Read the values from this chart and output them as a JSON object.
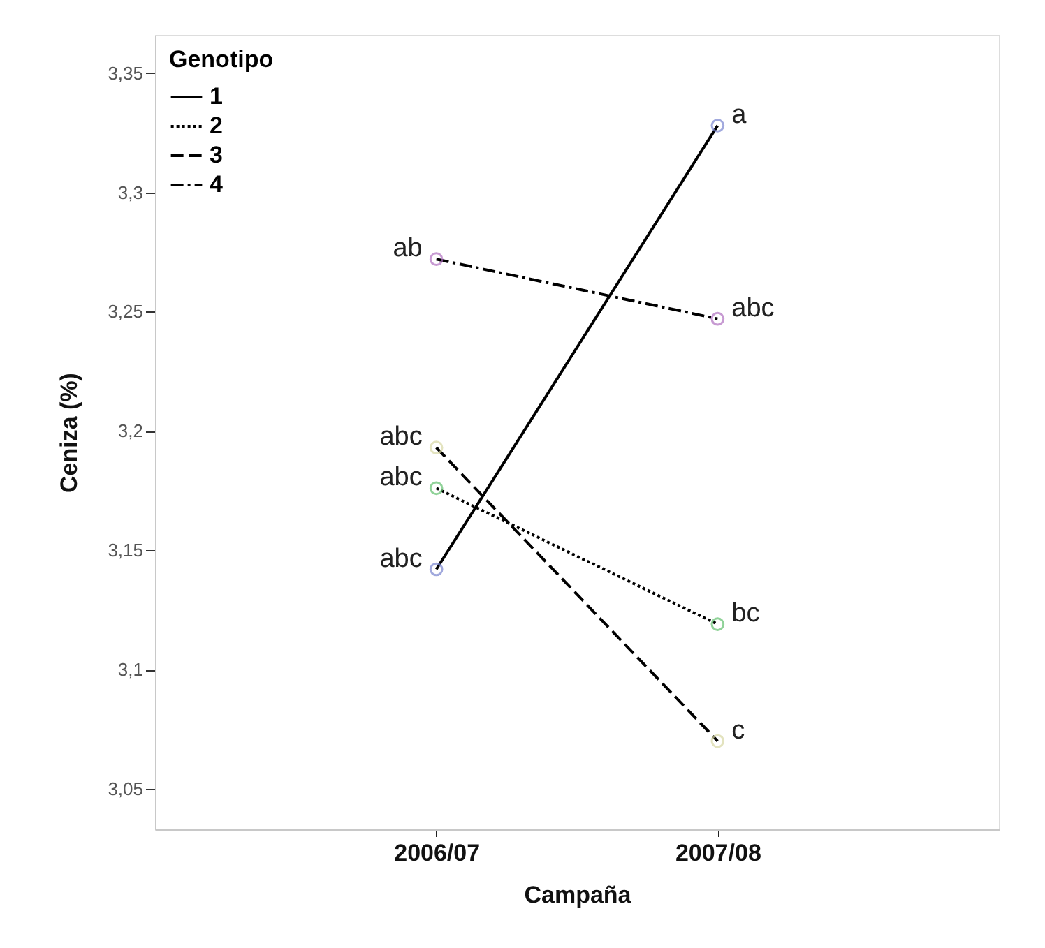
{
  "chart_data": {
    "type": "line",
    "xlabel": "Campaña",
    "ylabel": "Ceniza (%)",
    "legend_title": "Genotipo",
    "legend": "top left",
    "grid": false,
    "marker": "circle",
    "categories": [
      "2006/07",
      "2007/08"
    ],
    "ylim": [
      3.033,
      3.366
    ],
    "yticks": [
      {
        "value": 3.05,
        "label": "3,05"
      },
      {
        "value": 3.1,
        "label": "3,1"
      },
      {
        "value": 3.15,
        "label": "3,15"
      },
      {
        "value": 3.2,
        "label": "3,2"
      },
      {
        "value": 3.25,
        "label": "3,25"
      },
      {
        "value": 3.3,
        "label": "3,3"
      },
      {
        "value": 3.35,
        "label": "3,35"
      }
    ],
    "series": [
      {
        "name": "1",
        "color": "#000000",
        "colors": [
          "#7a86d0",
          "#7a86d0"
        ],
        "line_style": "solid",
        "values": [
          3.142,
          3.328
        ]
      },
      {
        "name": "2",
        "color": "#000000",
        "colors": [
          "#62c06e",
          "#62c06e"
        ],
        "line_style": "dotted",
        "values": [
          3.176,
          3.119
        ]
      },
      {
        "name": "3",
        "color": "#000000",
        "colors": [
          "#d8d8a4",
          "#d8d8a4"
        ],
        "line_style": "dashed",
        "values": [
          3.193,
          3.07
        ]
      },
      {
        "name": "4",
        "color": "#000000",
        "colors": [
          "#b070c0",
          "#b070c0"
        ],
        "line_style": "dashdot",
        "values": [
          3.272,
          3.247
        ]
      }
    ],
    "annotations": [
      {
        "text": "abc",
        "x": "2006/07",
        "y": 3.142
      },
      {
        "text": "a",
        "x": "2007/08",
        "y": 3.328
      },
      {
        "text": "abc",
        "x": "2006/07",
        "y": 3.176
      },
      {
        "text": "bc",
        "x": "2007/08",
        "y": 3.119
      },
      {
        "text": "abc",
        "x": "2006/07",
        "y": 3.193
      },
      {
        "text": "c",
        "x": "2007/08",
        "y": 3.07
      },
      {
        "text": "ab",
        "x": "2006/07",
        "y": 3.272
      },
      {
        "text": "abc",
        "x": "2007/08",
        "y": 3.247
      }
    ]
  }
}
